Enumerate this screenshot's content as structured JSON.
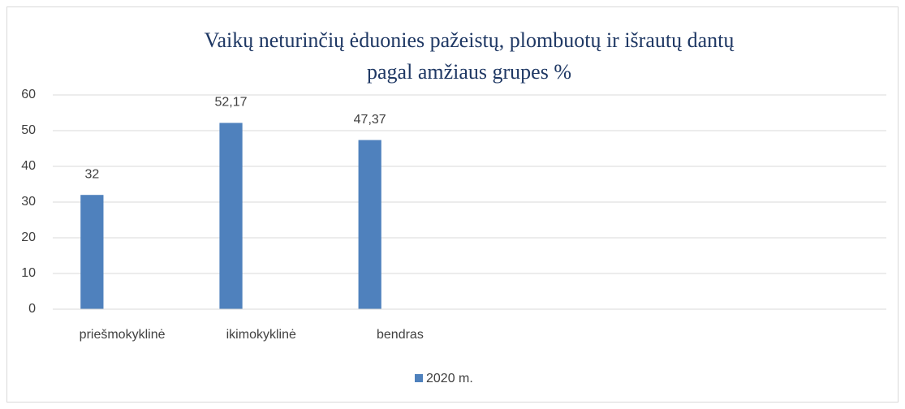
{
  "chart_data": {
    "type": "bar",
    "title": [
      "Vaikų neturinčių ėduonies pažeistų, plombuotų ir išrautų  dantų",
      "pagal amžiaus grupes  %"
    ],
    "categories": [
      "priešmokyklinė",
      "ikimokyklinė",
      "bendras",
      null,
      null,
      null
    ],
    "series": [
      {
        "name": "2020 m.",
        "color": "#4f81bd",
        "values": [
          32,
          52.17,
          47.37,
          null,
          null,
          null
        ],
        "value_labels": [
          "32",
          "52,17",
          "47,37",
          null,
          null,
          null
        ]
      }
    ],
    "ylim": [
      0,
      60
    ],
    "yticks": [
      0,
      10,
      20,
      30,
      40,
      50,
      60
    ],
    "grid": true,
    "legend": "bottom"
  }
}
